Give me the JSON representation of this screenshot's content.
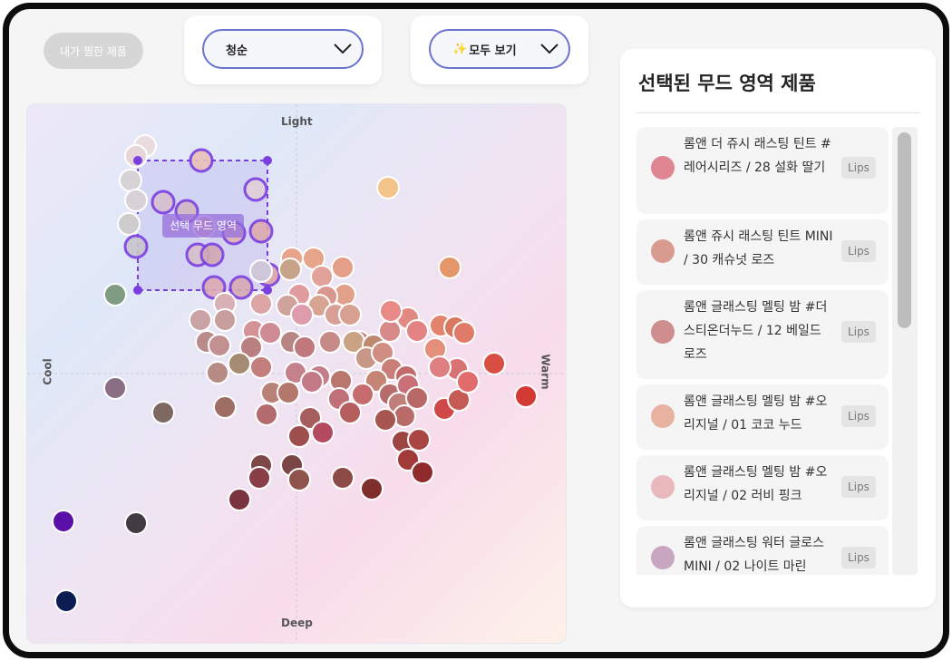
{
  "filters": {
    "wishlist_label": "내가 찜한 제품",
    "mood_select": "청순",
    "category_select": "모두 보기",
    "category_icon": "sparkles-icon"
  },
  "mood_map": {
    "axis_top": "Light",
    "axis_bottom": "Deep",
    "axis_left": "Cool",
    "axis_right": "Warm",
    "selection_label": "선택 무드 영역",
    "accent_color": "#7b3fe0"
  },
  "selected_panel": {
    "title": "선택된 무드 영역 제품",
    "products": [
      {
        "name": "롬앤 더 쥬시 래스팅 틴트 #레어시리즈 / 28 설화 딸기",
        "category": "Lips",
        "color": "#e08592"
      },
      {
        "name": "롬앤 쥬시 래스팅 틴트 MINI / 30 캐슈넛 로즈",
        "category": "Lips",
        "color": "#d99a90"
      },
      {
        "name": "롬앤 글래스팅 멜팅 밤 #더스티온더누드 / 12 베일드 로즈",
        "category": "Lips",
        "color": "#cf8d8d"
      },
      {
        "name": "롬앤 글래스팅 멜팅 밤 #오리지널 / 01 코코 누드",
        "category": "Lips",
        "color": "#e7b29f"
      },
      {
        "name": "롬앤 글래스팅 멜팅 밤 #오리지널 / 02 러비 핑크",
        "category": "Lips",
        "color": "#e8b8bd"
      },
      {
        "name": "롬앤 글래스팅 워터 글로스 MINI / 02 나이트 마린",
        "category": "Lips",
        "color": "#c9a6c0"
      }
    ]
  }
}
